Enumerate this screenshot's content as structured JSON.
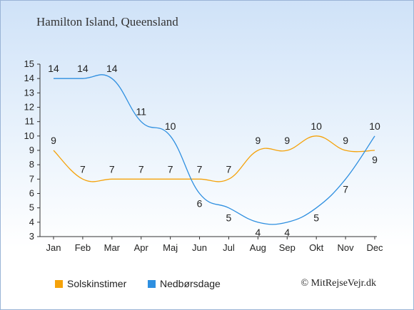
{
  "title": "Hamilton Island, Queensland",
  "copyright": "© MitRejseVejr.dk",
  "colors": {
    "sun": "#f5a20a",
    "rain": "#2e8fe0"
  },
  "chart_data": {
    "type": "line",
    "categories": [
      "Jan",
      "Feb",
      "Mar",
      "Apr",
      "Maj",
      "Jun",
      "Jul",
      "Aug",
      "Sep",
      "Okt",
      "Nov",
      "Dec"
    ],
    "ylim": [
      3,
      15
    ],
    "yticks": [
      "3",
      "4",
      "5",
      "6",
      "7",
      "8",
      "9",
      "10",
      "11",
      "12",
      "13",
      "14",
      "15"
    ],
    "grid": false,
    "legend_position": "bottom-left",
    "series": [
      {
        "name": "Solskinstimer",
        "color": "#f5a20a",
        "values": [
          9,
          7,
          7,
          7,
          7,
          7,
          7,
          9,
          9,
          10,
          9,
          9
        ]
      },
      {
        "name": "Nedbørsdage",
        "color": "#2e8fe0",
        "values": [
          14,
          14,
          14,
          11,
          10,
          6,
          5,
          4,
          4,
          5,
          7,
          10
        ]
      }
    ]
  }
}
